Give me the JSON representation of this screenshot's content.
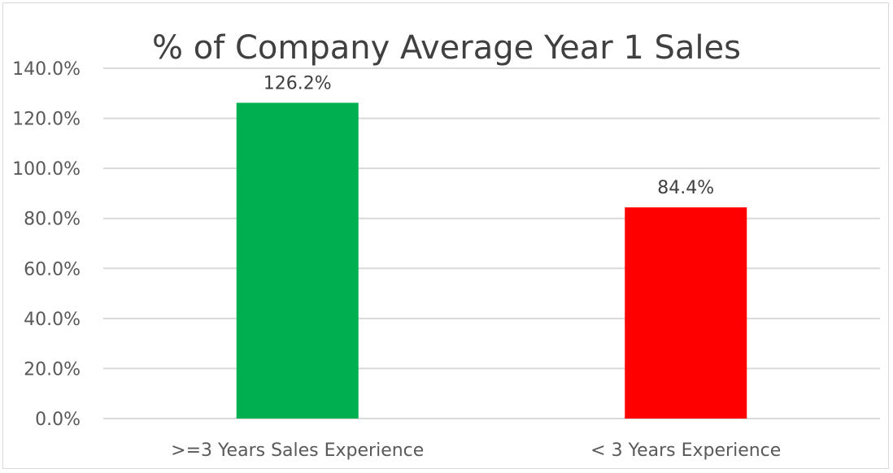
{
  "chart_data": {
    "type": "bar",
    "title": "% of Company Average Year 1 Sales",
    "categories": [
      ">=3 Years Sales Experience",
      "< 3 Years Experience"
    ],
    "values": [
      126.2,
      84.4
    ],
    "data_labels": [
      "126.2%",
      "84.4%"
    ],
    "bar_colors": [
      "#00b050",
      "#ff0000"
    ],
    "ylim": [
      0,
      140
    ],
    "ytick_values": [
      0,
      20,
      40,
      60,
      80,
      100,
      120,
      140
    ],
    "ytick_labels": [
      "0.0%",
      "20.0%",
      "40.0%",
      "60.0%",
      "80.0%",
      "100.0%",
      "120.0%",
      "140.0%"
    ],
    "grid": true,
    "legend": "none",
    "xlabel": "",
    "ylabel": ""
  }
}
